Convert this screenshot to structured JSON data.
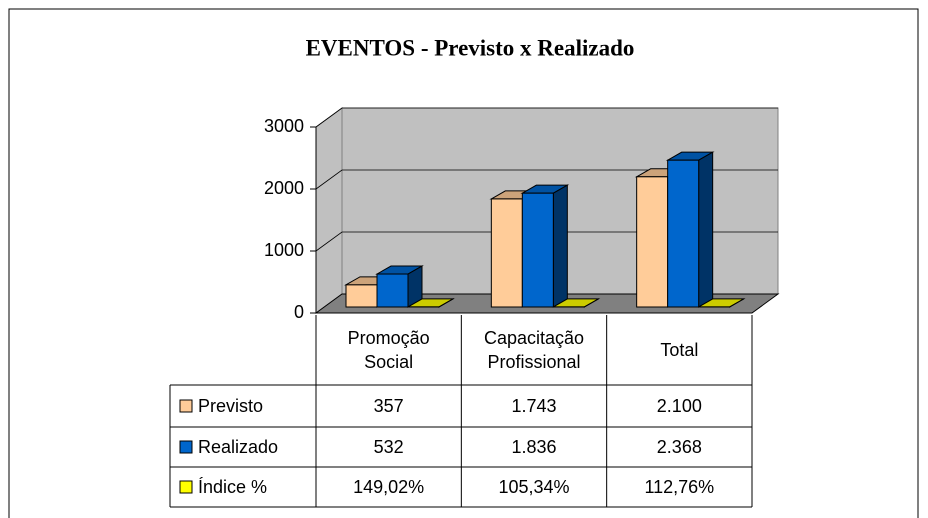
{
  "chart_data": {
    "type": "bar",
    "title": "EVENTOS - Previsto x Realizado",
    "categories": [
      "Promoção Social",
      "Capacitação Profissional",
      "Total"
    ],
    "series": [
      {
        "name": "Previsto",
        "color": "#ffcc99",
        "values": [
          357,
          1743,
          2100
        ],
        "value_labels": [
          "357",
          "1.743",
          "2.100"
        ]
      },
      {
        "name": "Realizado",
        "color": "#0066cc",
        "values": [
          532,
          1836,
          2368
        ],
        "value_labels": [
          "532",
          "1.836",
          "2.368"
        ]
      },
      {
        "name": "Índice %",
        "color": "#ffff00",
        "values": [
          1.4902,
          1.0534,
          1.1276
        ],
        "value_labels": [
          "149,02%",
          "105,34%",
          "112,76%"
        ]
      }
    ],
    "ylim": [
      0,
      3000
    ],
    "yticks": [
      0,
      1000,
      2000,
      3000
    ],
    "grid": true
  }
}
